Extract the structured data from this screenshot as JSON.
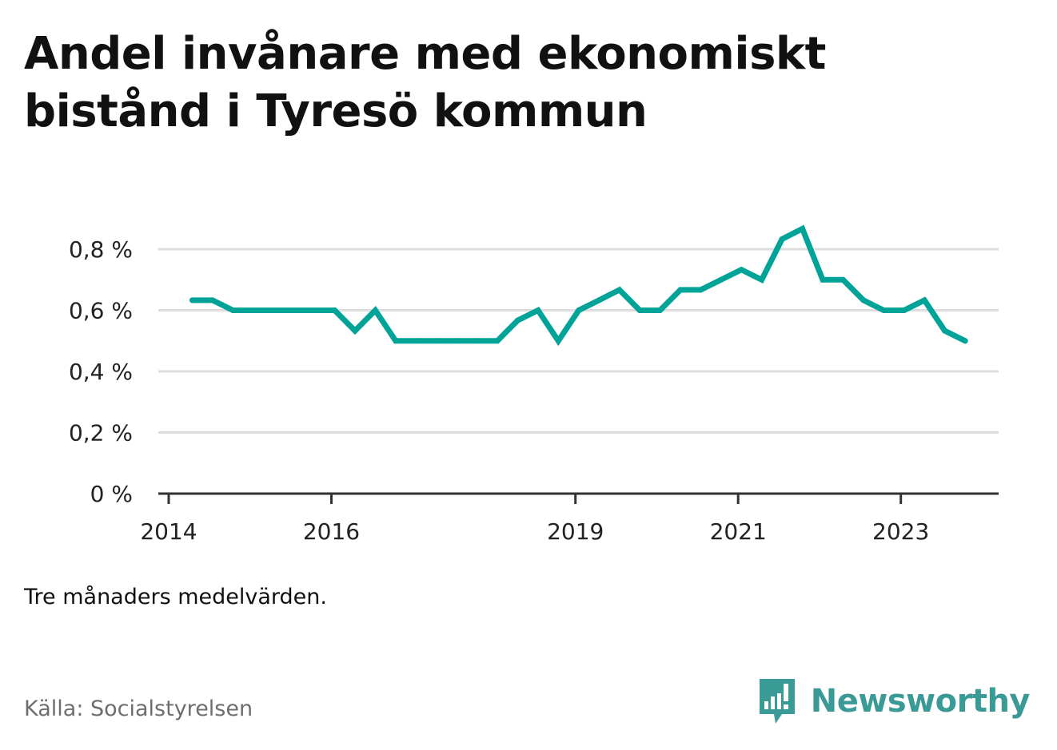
{
  "title": "Andel invånare med ekonomiskt bistånd i Tyresö kommun",
  "subtitle": "Tre månaders medelvärden.",
  "source": "Källa: Socialstyrelsen",
  "brand": {
    "name": "Newsworthy",
    "color": "#3a9a96",
    "icon": "bar-chart-speech-bubble-icon"
  },
  "chart_data": {
    "type": "line",
    "color": "#00a398",
    "grid": true,
    "xlim": [
      2014,
      2024.33
    ],
    "ylim": [
      0,
      0.8
    ],
    "x_ticks": [
      {
        "value": 2014,
        "label": "2014"
      },
      {
        "value": 2016,
        "label": "2016"
      },
      {
        "value": 2019,
        "label": "2019"
      },
      {
        "value": 2021,
        "label": "2021"
      },
      {
        "value": 2023,
        "label": "2023"
      }
    ],
    "y_ticks": [
      {
        "value": 0,
        "label": "0 %"
      },
      {
        "value": 0.2,
        "label": "0,2 %"
      },
      {
        "value": 0.4,
        "label": "0,4 %"
      },
      {
        "value": 0.6,
        "label": "0,6 %"
      },
      {
        "value": 0.8,
        "label": "0,8 %"
      }
    ],
    "series": [
      {
        "x": [
          2014.29,
          2014.54,
          2014.79,
          2015.04,
          2015.29,
          2015.54,
          2015.79,
          2016.04,
          2016.29,
          2016.54,
          2016.79,
          2017.04,
          2017.29,
          2017.54,
          2017.79,
          2018.04,
          2018.29,
          2018.54,
          2018.79,
          2019.04,
          2019.29,
          2019.54,
          2019.79,
          2020.04,
          2020.29,
          2020.54,
          2020.79,
          2021.04,
          2021.29,
          2021.54,
          2021.79,
          2022.04,
          2022.29,
          2022.54,
          2022.79,
          2023.04,
          2023.29,
          2023.54,
          2023.79
        ],
        "values": [
          0.633,
          0.633,
          0.6,
          0.6,
          0.6,
          0.6,
          0.6,
          0.6,
          0.533,
          0.6,
          0.5,
          0.5,
          0.5,
          0.5,
          0.5,
          0.5,
          0.567,
          0.6,
          0.5,
          0.6,
          0.633,
          0.667,
          0.6,
          0.6,
          0.667,
          0.667,
          0.7,
          0.733,
          0.7,
          0.833,
          0.867,
          0.7,
          0.7,
          0.633,
          0.6,
          0.6,
          0.633,
          0.533,
          0.5
        ]
      }
    ]
  }
}
